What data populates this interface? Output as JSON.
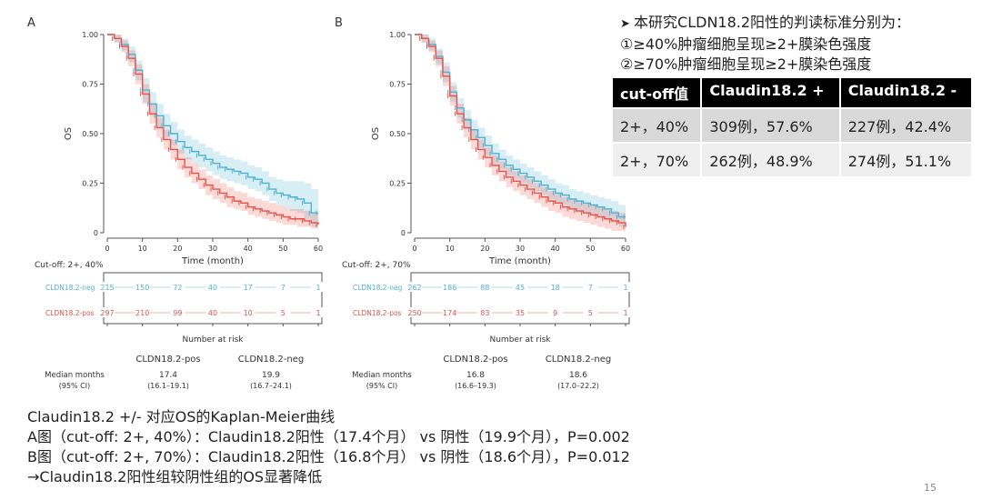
{
  "chart_data": [
    {
      "type": "line",
      "panel_label": "A",
      "ylabel": "OS",
      "xlabel": "Time (month)",
      "xlim": [
        0,
        60
      ],
      "ylim": [
        0,
        1
      ],
      "x_ticks": [
        0,
        10,
        20,
        30,
        40,
        50,
        60
      ],
      "y_ticks": [
        "0",
        "0.25",
        "0.50",
        "0.75",
        "1.00"
      ],
      "series": [
        {
          "name": "CLDN18.2-neg",
          "color": "#4eb3d3",
          "x": [
            0,
            2,
            4,
            6,
            8,
            10,
            12,
            14,
            16,
            18,
            20,
            22,
            24,
            26,
            28,
            30,
            32,
            34,
            36,
            38,
            40,
            42,
            44,
            46,
            48,
            50,
            52,
            54,
            56,
            58,
            60
          ],
          "y": [
            1.0,
            0.98,
            0.95,
            0.9,
            0.82,
            0.72,
            0.65,
            0.59,
            0.54,
            0.5,
            0.46,
            0.43,
            0.41,
            0.39,
            0.37,
            0.35,
            0.33,
            0.32,
            0.31,
            0.3,
            0.28,
            0.27,
            0.25,
            0.22,
            0.2,
            0.19,
            0.18,
            0.17,
            0.15,
            0.1,
            0.1
          ],
          "ci_band": {
            "lower": [
              1.0,
              0.96,
              0.92,
              0.86,
              0.77,
              0.66,
              0.59,
              0.53,
              0.48,
              0.44,
              0.4,
              0.37,
              0.35,
              0.33,
              0.31,
              0.29,
              0.27,
              0.26,
              0.25,
              0.24,
              0.22,
              0.21,
              0.19,
              0.16,
              0.14,
              0.13,
              0.11,
              0.1,
              0.07,
              0.03,
              0.03
            ],
            "upper": [
              1.0,
              1.0,
              0.98,
              0.94,
              0.87,
              0.78,
              0.71,
              0.65,
              0.6,
              0.56,
              0.52,
              0.49,
              0.47,
              0.45,
              0.43,
              0.41,
              0.39,
              0.38,
              0.37,
              0.36,
              0.34,
              0.33,
              0.31,
              0.28,
              0.27,
              0.26,
              0.26,
              0.26,
              0.25,
              0.22,
              0.22
            ]
          }
        },
        {
          "name": "CLDN18.2-pos",
          "color": "#e8534a",
          "x": [
            0,
            2,
            4,
            6,
            8,
            10,
            12,
            14,
            16,
            18,
            20,
            22,
            24,
            26,
            28,
            30,
            32,
            34,
            36,
            38,
            40,
            42,
            44,
            46,
            48,
            50,
            52,
            54,
            56,
            58,
            60
          ],
          "y": [
            1.0,
            0.98,
            0.94,
            0.88,
            0.8,
            0.7,
            0.6,
            0.53,
            0.47,
            0.42,
            0.37,
            0.33,
            0.3,
            0.27,
            0.24,
            0.22,
            0.2,
            0.18,
            0.16,
            0.15,
            0.13,
            0.12,
            0.11,
            0.1,
            0.09,
            0.08,
            0.07,
            0.07,
            0.06,
            0.05,
            0.04
          ],
          "ci_band": {
            "lower": [
              1.0,
              0.96,
              0.91,
              0.84,
              0.75,
              0.65,
              0.55,
              0.48,
              0.42,
              0.37,
              0.32,
              0.28,
              0.25,
              0.22,
              0.19,
              0.17,
              0.15,
              0.13,
              0.12,
              0.11,
              0.09,
              0.08,
              0.07,
              0.06,
              0.05,
              0.04,
              0.04,
              0.03,
              0.03,
              0.02,
              0.01
            ],
            "upper": [
              1.0,
              1.0,
              0.97,
              0.92,
              0.85,
              0.75,
              0.65,
              0.58,
              0.52,
              0.47,
              0.42,
              0.38,
              0.35,
              0.32,
              0.29,
              0.27,
              0.25,
              0.23,
              0.21,
              0.2,
              0.18,
              0.17,
              0.16,
              0.15,
              0.14,
              0.13,
              0.12,
              0.12,
              0.11,
              0.1,
              0.09
            ]
          }
        }
      ],
      "cutoff_label": "Cut-off: 2+, 40%",
      "risk_table": {
        "rows": [
          {
            "label": "CLDN18.2-neg",
            "color": "#4eb3d3",
            "counts": [
              "215",
              "150",
              "72",
              "40",
              "17",
              "7",
              "1"
            ]
          },
          {
            "label": "CLDN18.2-pos",
            "color": "#e8534a",
            "counts": [
              "297",
              "210",
              "99",
              "40",
              "10",
              "5",
              "1"
            ]
          }
        ],
        "xlabel": "Number at risk"
      },
      "median_table": {
        "row_label_1": "Median months",
        "row_label_2": "(95% CI)",
        "pos_header": "CLDN18.2-pos",
        "neg_header": "CLDN18.2-neg",
        "pos_median": "17.4",
        "pos_ci": "(16.1–19.1)",
        "neg_median": "19.9",
        "neg_ci": "(16.7–24.1)"
      }
    },
    {
      "type": "line",
      "panel_label": "B",
      "ylabel": "OS",
      "xlabel": "Time (month)",
      "xlim": [
        0,
        60
      ],
      "ylim": [
        0,
        1
      ],
      "x_ticks": [
        0,
        10,
        20,
        30,
        40,
        50,
        60
      ],
      "y_ticks": [
        "0",
        "0.25",
        "0.50",
        "0.75",
        "1.00"
      ],
      "series": [
        {
          "name": "CLDN18.2-neg",
          "color": "#4eb3d3",
          "x": [
            0,
            2,
            4,
            6,
            8,
            10,
            12,
            14,
            16,
            18,
            20,
            22,
            24,
            26,
            28,
            30,
            32,
            34,
            36,
            38,
            40,
            42,
            44,
            46,
            48,
            50,
            52,
            54,
            56,
            58,
            60
          ],
          "y": [
            1.0,
            0.98,
            0.95,
            0.89,
            0.81,
            0.71,
            0.63,
            0.57,
            0.52,
            0.48,
            0.44,
            0.4,
            0.37,
            0.34,
            0.32,
            0.3,
            0.28,
            0.26,
            0.24,
            0.22,
            0.2,
            0.19,
            0.17,
            0.16,
            0.15,
            0.14,
            0.13,
            0.12,
            0.1,
            0.08,
            0.08
          ],
          "ci_band": {
            "lower": [
              1.0,
              0.96,
              0.92,
              0.85,
              0.76,
              0.66,
              0.58,
              0.52,
              0.47,
              0.43,
              0.39,
              0.35,
              0.32,
              0.29,
              0.27,
              0.25,
              0.23,
              0.21,
              0.19,
              0.17,
              0.15,
              0.14,
              0.12,
              0.11,
              0.1,
              0.09,
              0.08,
              0.07,
              0.05,
              0.03,
              0.03
            ],
            "upper": [
              1.0,
              1.0,
              0.98,
              0.93,
              0.86,
              0.76,
              0.68,
              0.62,
              0.57,
              0.53,
              0.49,
              0.45,
              0.42,
              0.39,
              0.37,
              0.35,
              0.33,
              0.31,
              0.29,
              0.27,
              0.25,
              0.24,
              0.22,
              0.21,
              0.2,
              0.19,
              0.18,
              0.17,
              0.16,
              0.14,
              0.14
            ]
          }
        },
        {
          "name": "CLDN18.2-pos",
          "color": "#e8534a",
          "x": [
            0,
            2,
            4,
            6,
            8,
            10,
            12,
            14,
            16,
            18,
            20,
            22,
            24,
            26,
            28,
            30,
            32,
            34,
            36,
            38,
            40,
            42,
            44,
            46,
            48,
            50,
            52,
            54,
            56,
            58,
            60
          ],
          "y": [
            1.0,
            0.98,
            0.94,
            0.88,
            0.79,
            0.69,
            0.6,
            0.53,
            0.47,
            0.42,
            0.38,
            0.34,
            0.31,
            0.28,
            0.26,
            0.24,
            0.22,
            0.2,
            0.18,
            0.16,
            0.15,
            0.13,
            0.12,
            0.11,
            0.1,
            0.09,
            0.08,
            0.07,
            0.06,
            0.05,
            0.03
          ],
          "ci_band": {
            "lower": [
              1.0,
              0.96,
              0.91,
              0.84,
              0.74,
              0.64,
              0.55,
              0.48,
              0.42,
              0.37,
              0.33,
              0.29,
              0.26,
              0.23,
              0.21,
              0.19,
              0.17,
              0.15,
              0.13,
              0.11,
              0.1,
              0.08,
              0.07,
              0.06,
              0.05,
              0.04,
              0.03,
              0.02,
              0.01,
              0.01,
              0.0
            ],
            "upper": [
              1.0,
              1.0,
              0.97,
              0.92,
              0.84,
              0.74,
              0.65,
              0.58,
              0.52,
              0.47,
              0.43,
              0.39,
              0.36,
              0.33,
              0.31,
              0.29,
              0.27,
              0.25,
              0.23,
              0.21,
              0.2,
              0.18,
              0.17,
              0.16,
              0.15,
              0.14,
              0.13,
              0.12,
              0.11,
              0.1,
              0.08
            ]
          }
        }
      ],
      "cutoff_label": "Cut-off: 2+, 70%",
      "risk_table": {
        "rows": [
          {
            "label": "CLDN18.2-neg",
            "color": "#4eb3d3",
            "counts": [
              "262",
              "186",
              "88",
              "45",
              "18",
              "7",
              "1"
            ]
          },
          {
            "label": "CLDN18.2-pos",
            "color": "#e8534a",
            "counts": [
              "250",
              "174",
              "83",
              "35",
              "9",
              "5",
              "1"
            ]
          }
        ],
        "xlabel": "Number at risk"
      },
      "median_table": {
        "row_label_1": "Median months",
        "row_label_2": "(95% CI)",
        "pos_header": "CLDN18.2-pos",
        "neg_header": "CLDN18.2-neg",
        "pos_median": "16.8",
        "pos_ci": "(16.6–19.3)",
        "neg_median": "18.6",
        "neg_ci": "(17.0–22.2)"
      }
    }
  ],
  "criteria": {
    "intro": "本研究CLDN18.2阳性的判读标准分别为：",
    "item1": "①≥40%肿瘤细胞呈现≥2+膜染色强度",
    "item2": "②≥70%肿瘤细胞呈现≥2+膜染色强度"
  },
  "cutoff_table": {
    "headers": [
      "cut-off值",
      "Claudin18.2 +",
      "Claudin18.2 -"
    ],
    "rows": [
      [
        "2+，40%",
        "309例，57.6%",
        "227例，42.4%"
      ],
      [
        "2+，70%",
        "262例，48.9%",
        "274例，51.1%"
      ]
    ]
  },
  "caption": {
    "line1": "Claudin18.2 +/- 对应OS的Kaplan-Meier曲线",
    "line2": "A图（cut-off: 2+, 40%）：Claudin18.2阳性（17.4个月） vs 阴性（19.9个月），P=0.002",
    "line3": "B图（cut-off: 2+, 70%）：Claudin18.2阳性（16.8个月） vs 阴性（18.6个月），P=0.012",
    "line4": "→Claudin18.2阳性组较阴性组的OS显著降低"
  },
  "page_number": "15"
}
